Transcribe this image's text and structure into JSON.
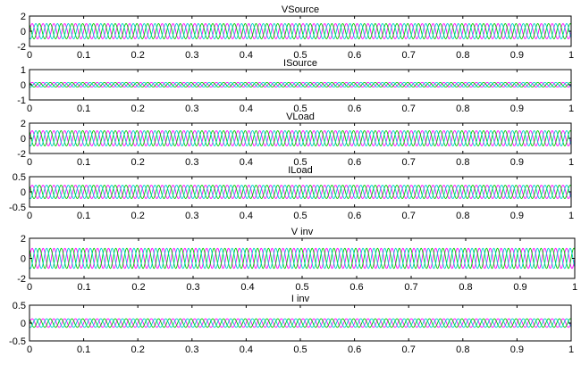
{
  "chart_data": [
    {
      "type": "line",
      "title": "VSource",
      "xlim": [
        0,
        1
      ],
      "ylim": [
        -2,
        2
      ],
      "xticks": [
        0,
        0.1,
        0.2,
        0.3,
        0.4,
        0.5,
        0.6,
        0.7,
        0.8,
        0.9,
        1
      ],
      "yticks": [
        -2,
        0,
        2
      ],
      "grid": false,
      "frequency_hz": 50,
      "series": [
        {
          "phase_deg": 0,
          "amplitude": 1.0,
          "color": "#ff00ff"
        },
        {
          "phase_deg": 120,
          "amplitude": 1.0,
          "color": "#00cc00"
        },
        {
          "phase_deg": 240,
          "amplitude": 1.0,
          "color": "#00cccc"
        }
      ]
    },
    {
      "type": "line",
      "title": "ISource",
      "xlim": [
        0,
        1
      ],
      "ylim": [
        -1,
        1
      ],
      "xticks": [
        0,
        0.1,
        0.2,
        0.3,
        0.4,
        0.5,
        0.6,
        0.7,
        0.8,
        0.9,
        1
      ],
      "yticks": [
        -1,
        0,
        1
      ],
      "grid": false,
      "frequency_hz": 50,
      "series": [
        {
          "phase_deg": 0,
          "amplitude": 0.15,
          "color": "#ff00ff"
        },
        {
          "phase_deg": 120,
          "amplitude": 0.15,
          "color": "#00cc00"
        },
        {
          "phase_deg": 240,
          "amplitude": 0.15,
          "color": "#00cccc"
        }
      ]
    },
    {
      "type": "line",
      "title": "VLoad",
      "xlim": [
        0,
        1
      ],
      "ylim": [
        -2,
        2
      ],
      "xticks": [
        0,
        0.1,
        0.2,
        0.3,
        0.4,
        0.5,
        0.6,
        0.7,
        0.8,
        0.9,
        1
      ],
      "yticks": [
        -2,
        0,
        2
      ],
      "grid": false,
      "frequency_hz": 50,
      "series": [
        {
          "phase_deg": 0,
          "amplitude": 1.0,
          "color": "#ff00ff"
        },
        {
          "phase_deg": 120,
          "amplitude": 1.0,
          "color": "#00cc00"
        },
        {
          "phase_deg": 240,
          "amplitude": 1.0,
          "color": "#00cccc"
        }
      ]
    },
    {
      "type": "line",
      "title": "ILoad",
      "xlim": [
        0,
        1
      ],
      "ylim": [
        -0.5,
        0.5
      ],
      "xticks": [
        0,
        0.1,
        0.2,
        0.3,
        0.4,
        0.5,
        0.6,
        0.7,
        0.8,
        0.9,
        1
      ],
      "yticks": [
        -0.5,
        0,
        0.5
      ],
      "grid": false,
      "frequency_hz": 50,
      "series": [
        {
          "phase_deg": 0,
          "amplitude": 0.22,
          "color": "#ff00ff"
        },
        {
          "phase_deg": 120,
          "amplitude": 0.22,
          "color": "#00cc00"
        },
        {
          "phase_deg": 240,
          "amplitude": 0.22,
          "color": "#00cccc"
        }
      ]
    },
    {
      "type": "line",
      "title": "V inv",
      "xlim": [
        0,
        1
      ],
      "ylim": [
        -2,
        2
      ],
      "xticks": [
        0,
        0.1,
        0.2,
        0.3,
        0.4,
        0.5,
        0.6,
        0.7,
        0.8,
        0.9,
        1
      ],
      "yticks": [
        -2,
        0,
        2
      ],
      "grid": false,
      "frequency_hz": 50,
      "series": [
        {
          "phase_deg": 0,
          "amplitude": 1.0,
          "color": "#ff00ff"
        },
        {
          "phase_deg": 120,
          "amplitude": 1.0,
          "color": "#00cc00"
        },
        {
          "phase_deg": 240,
          "amplitude": 1.0,
          "color": "#00cccc"
        }
      ]
    },
    {
      "type": "line",
      "title": "I inv",
      "xlim": [
        0,
        1
      ],
      "ylim": [
        -0.5,
        0.5
      ],
      "xticks": [
        0,
        0.1,
        0.2,
        0.3,
        0.4,
        0.5,
        0.6,
        0.7,
        0.8,
        0.9,
        1
      ],
      "yticks": [
        -0.5,
        0,
        0.5
      ],
      "grid": false,
      "frequency_hz": 50,
      "series": [
        {
          "phase_deg": 0,
          "amplitude": 0.12,
          "color": "#ff00ff"
        },
        {
          "phase_deg": 120,
          "amplitude": 0.12,
          "color": "#00cc00"
        },
        {
          "phase_deg": 240,
          "amplitude": 0.12,
          "color": "#00cccc"
        }
      ]
    }
  ]
}
